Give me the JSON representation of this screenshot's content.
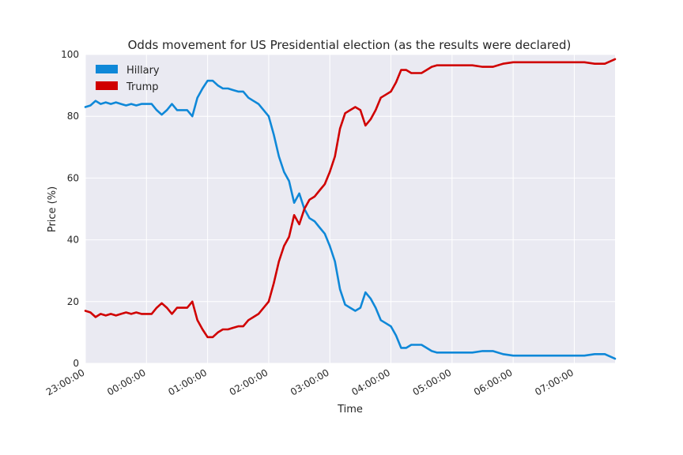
{
  "chart_data": {
    "type": "line",
    "title": "Odds movement for US Presidential election (as the results were declared)",
    "xlabel": "Time",
    "ylabel": "Price (%)",
    "ylim": [
      0,
      100
    ],
    "yticks": [
      "0",
      "20",
      "40",
      "60",
      "80",
      "100"
    ],
    "xlim": [
      "23:00:00",
      "07:40:00"
    ],
    "xticks": [
      "23:00:00",
      "00:00:00",
      "01:00:00",
      "02:00:00",
      "03:00:00",
      "04:00:00",
      "05:00:00",
      "06:00:00",
      "07:00:00"
    ],
    "grid": true,
    "legend_position": "top-left",
    "x": [
      "23:00",
      "23:05",
      "23:10",
      "23:15",
      "23:20",
      "23:25",
      "23:30",
      "23:35",
      "23:40",
      "23:45",
      "23:50",
      "23:55",
      "00:00",
      "00:05",
      "00:10",
      "00:15",
      "00:20",
      "00:25",
      "00:30",
      "00:35",
      "00:40",
      "00:45",
      "00:50",
      "00:55",
      "01:00",
      "01:05",
      "01:10",
      "01:15",
      "01:20",
      "01:25",
      "01:30",
      "01:35",
      "01:40",
      "01:45",
      "01:50",
      "01:55",
      "02:00",
      "02:05",
      "02:10",
      "02:15",
      "02:20",
      "02:25",
      "02:30",
      "02:35",
      "02:40",
      "02:45",
      "02:50",
      "02:55",
      "03:00",
      "03:05",
      "03:10",
      "03:15",
      "03:20",
      "03:25",
      "03:30",
      "03:35",
      "03:40",
      "03:45",
      "03:50",
      "03:55",
      "04:00",
      "04:05",
      "04:10",
      "04:15",
      "04:20",
      "04:25",
      "04:30",
      "04:35",
      "04:40",
      "04:45",
      "04:50",
      "04:55",
      "05:00",
      "05:10",
      "05:20",
      "05:30",
      "05:40",
      "05:50",
      "06:00",
      "06:10",
      "06:20",
      "06:30",
      "06:40",
      "06:50",
      "07:00",
      "07:10",
      "07:20",
      "07:30",
      "07:40"
    ],
    "series": [
      {
        "name": "Hillary",
        "color": "#0f88d8",
        "values": [
          83,
          83.5,
          85,
          84,
          84.5,
          84,
          84.5,
          84,
          83.5,
          84,
          83.5,
          84,
          84,
          84,
          82,
          80.5,
          82,
          84,
          82,
          82,
          82,
          80,
          86,
          89,
          91.5,
          91.5,
          90,
          89,
          89,
          88.5,
          88,
          88,
          86,
          85,
          84,
          82,
          80,
          74,
          67,
          62,
          59,
          52,
          55,
          50,
          47,
          46,
          44,
          42,
          38,
          33,
          24,
          19,
          18,
          17,
          18,
          23,
          21,
          18,
          14,
          13,
          12,
          9,
          5,
          5,
          6,
          6,
          6,
          5,
          4,
          3.5,
          3.5,
          3.5,
          3.5,
          3.5,
          3.5,
          4,
          4,
          3,
          2.5,
          2.5,
          2.5,
          2.5,
          2.5,
          2.5,
          2.5,
          2.5,
          3,
          3,
          1.5
        ]
      },
      {
        "name": "Trump",
        "color": "#d00000",
        "values": [
          17,
          16.5,
          15,
          16,
          15.5,
          16,
          15.5,
          16,
          16.5,
          16,
          16.5,
          16,
          16,
          16,
          18,
          19.5,
          18,
          16,
          18,
          18,
          18,
          20,
          14,
          11,
          8.5,
          8.5,
          10,
          11,
          11,
          11.5,
          12,
          12,
          14,
          15,
          16,
          18,
          20,
          26,
          33,
          38,
          41,
          48,
          45,
          50,
          53,
          54,
          56,
          58,
          62,
          67,
          76,
          81,
          82,
          83,
          82,
          77,
          79,
          82,
          86,
          87,
          88,
          91,
          95,
          95,
          94,
          94,
          94,
          95,
          96,
          96.5,
          96.5,
          96.5,
          96.5,
          96.5,
          96.5,
          96,
          96,
          97,
          97.5,
          97.5,
          97.5,
          97.5,
          97.5,
          97.5,
          97.5,
          97.5,
          97,
          97,
          98.5
        ]
      }
    ]
  }
}
